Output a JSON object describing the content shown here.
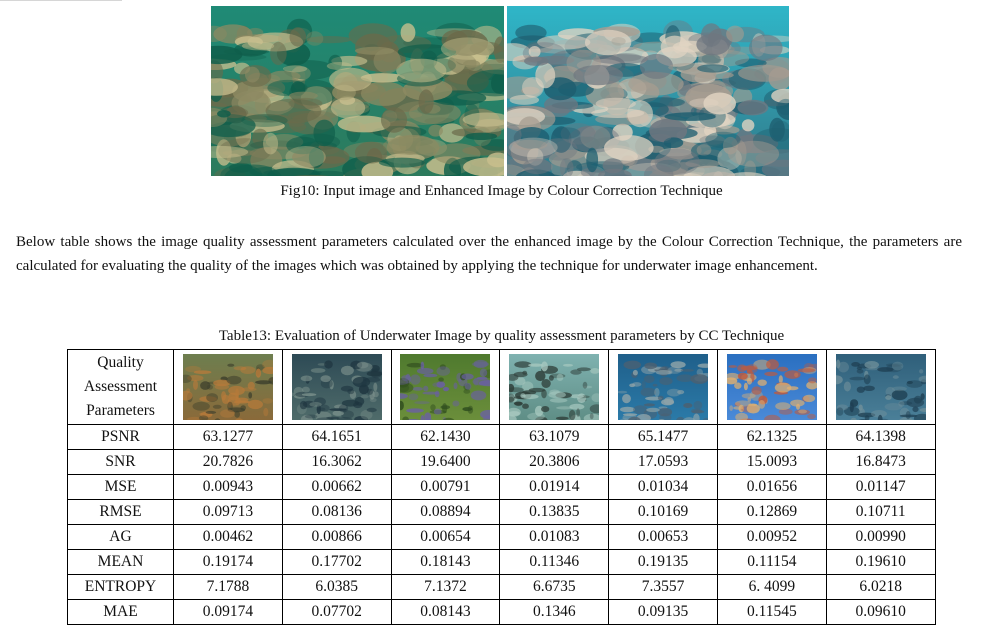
{
  "figure": {
    "caption": "Fig10: Input image and Enhanced Image by Colour Correction Technique",
    "images": [
      {
        "name": "input-underwater-image",
        "palette": [
          "#1f8a76",
          "#2c7a5c",
          "#8d8a62",
          "#6b6a4a",
          "#c9bf8e",
          "#0f5e4b"
        ]
      },
      {
        "name": "enhanced-underwater-image",
        "palette": [
          "#2fb6c8",
          "#327a8a",
          "#a69c90",
          "#6f7780",
          "#e1d4c2",
          "#1e5e70"
        ]
      }
    ]
  },
  "paragraph": "Below table shows the image quality assessment parameters calculated over the enhanced image by the Colour Correction Technique, the parameters are calculated for evaluating the quality of the images which was obtained by applying the technique for underwater image enhancement.",
  "table": {
    "caption": "Table13: Evaluation of Underwater Image by quality assessment parameters by CC Technique",
    "header_label_lines": [
      "Quality",
      "Assessment",
      "Parameters"
    ],
    "thumbnails": [
      {
        "name": "diver-thumbnail",
        "palette": [
          "#6d7e4f",
          "#8a6a3a",
          "#b77a3a",
          "#3c3f2c"
        ]
      },
      {
        "name": "dark-reef-thumbnail",
        "palette": [
          "#2d4a55",
          "#4f6b6a",
          "#1e3540",
          "#7a8f8a"
        ]
      },
      {
        "name": "green-turtle-thumbnail",
        "palette": [
          "#4f7a2e",
          "#6b8e3b",
          "#6a5ea8",
          "#2f4d1e"
        ]
      },
      {
        "name": "divers-reef-thumbnail",
        "palette": [
          "#7fb2b0",
          "#5f8e86",
          "#2f3f3a",
          "#a8c9c0"
        ]
      },
      {
        "name": "blue-seafloor-thumbnail",
        "palette": [
          "#1f5f8a",
          "#2b7aa8",
          "#8fa3a8",
          "#4d6070"
        ]
      },
      {
        "name": "coral-reef-thumbnail",
        "palette": [
          "#2a6fc0",
          "#4a8ad8",
          "#c25a3a",
          "#e0b070"
        ]
      },
      {
        "name": "shipwreck-thumbnail",
        "palette": [
          "#2f5f7a",
          "#4a7f98",
          "#1e3f52",
          "#6f8f9a"
        ]
      }
    ],
    "rows": [
      {
        "label": "PSNR",
        "values": [
          "63.1277",
          "64.1651",
          "62.1430",
          "63.1079",
          "65.1477",
          "62.1325",
          "64.1398"
        ]
      },
      {
        "label": "SNR",
        "values": [
          "20.7826",
          "16.3062",
          "19.6400",
          "20.3806",
          "17.0593",
          "15.0093",
          "16.8473"
        ]
      },
      {
        "label": "MSE",
        "values": [
          "0.00943",
          "0.00662",
          "0.00791",
          "0.01914",
          "0.01034",
          "0.01656",
          "0.01147"
        ]
      },
      {
        "label": "RMSE",
        "values": [
          "0.09713",
          "0.08136",
          "0.08894",
          "0.13835",
          "0.10169",
          "0.12869",
          "0.10711"
        ]
      },
      {
        "label": "AG",
        "values": [
          "0.00462",
          "0.00866",
          "0.00654",
          "0.01083",
          "0.00653",
          "0.00952",
          "0.00990"
        ]
      },
      {
        "label": "MEAN",
        "values": [
          "0.19174",
          "0.17702",
          "0.18143",
          "0.11346",
          "0.19135",
          "0.11154",
          "0.19610"
        ]
      },
      {
        "label": "ENTROPY",
        "values": [
          "7.1788",
          "6.0385",
          "7.1372",
          "6.6735",
          "7.3557",
          "6. 4099",
          "6.0218"
        ]
      },
      {
        "label": "MAE",
        "values": [
          "0.09174",
          "0.07702",
          "0.08143",
          "0.1346",
          "0.09135",
          "0.11545",
          "0.09610"
        ]
      }
    ]
  }
}
